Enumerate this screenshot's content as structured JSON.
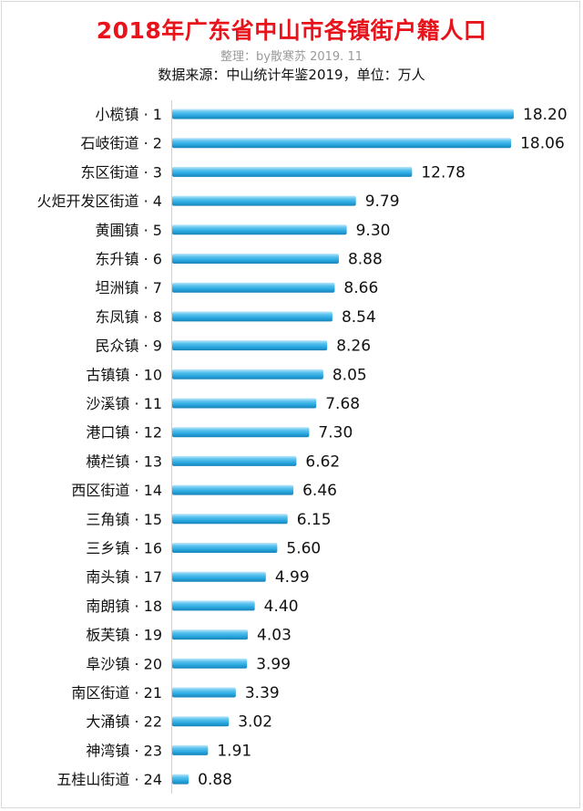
{
  "chart_data": {
    "type": "bar",
    "orientation": "horizontal",
    "title": "2018年广东省中山市各镇街户籍人口",
    "subtitle": "整理：by散寒苏  2019. 11",
    "source": "数据来源：中山统计年鉴2019，单位：万人",
    "categories": [
      "小榄镇 · 1",
      "石岐街道 · 2",
      "东区街道 · 3",
      "火炬开发区街道 · 4",
      "黄圃镇 · 5",
      "东升镇 · 6",
      "坦洲镇 · 7",
      "东凤镇 · 8",
      "民众镇 · 9",
      "古镇镇 · 10",
      "沙溪镇 · 11",
      "港口镇 · 12",
      "横栏镇 · 13",
      "西区街道 · 14",
      "三角镇 · 15",
      "三乡镇 · 16",
      "南头镇 · 17",
      "南朗镇 · 18",
      "板芙镇 · 19",
      "阜沙镇 · 20",
      "南区街道 · 21",
      "大涌镇 · 22",
      "神湾镇 · 23",
      "五桂山街道 · 24"
    ],
    "values": [
      18.2,
      18.06,
      12.78,
      9.79,
      9.3,
      8.88,
      8.66,
      8.54,
      8.26,
      8.05,
      7.68,
      7.3,
      6.62,
      6.46,
      6.15,
      5.6,
      4.99,
      4.4,
      4.03,
      3.99,
      3.39,
      3.02,
      1.91,
      0.88
    ],
    "value_labels": [
      "18.20",
      "18.06",
      "12.78",
      "9.79",
      "9.30",
      "8.88",
      "8.66",
      "8.54",
      "8.26",
      "8.05",
      "7.68",
      "7.30",
      "6.62",
      "6.46",
      "6.15",
      "5.60",
      "4.99",
      "4.40",
      "4.03",
      "3.99",
      "3.39",
      "3.02",
      "1.91",
      "0.88"
    ],
    "xlim": [
      0,
      20
    ],
    "grid": false,
    "legend": "none",
    "bar_color": "#29a8e0"
  }
}
